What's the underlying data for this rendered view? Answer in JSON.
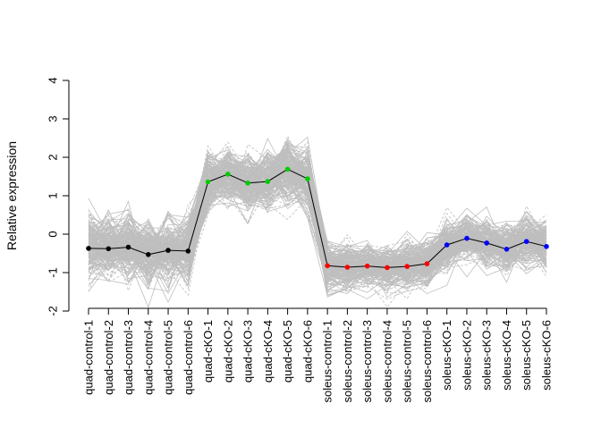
{
  "chart_data": {
    "type": "line",
    "title": "",
    "xlabel": "",
    "ylabel": "Relative expression",
    "ylim": [
      -2,
      4
    ],
    "yticks": [
      -2,
      -1,
      0,
      1,
      2,
      3,
      4
    ],
    "grid": false,
    "legend": "none",
    "categories": [
      "quad-control-1",
      "quad-control-2",
      "quad-control-3",
      "quad-control-4",
      "quad-control-5",
      "quad-control-6",
      "quad-cKO-1",
      "quad-cKO-2",
      "quad-cKO-3",
      "quad-cKO-4",
      "quad-cKO-5",
      "quad-cKO-6",
      "soleus-control-1",
      "soleus-control-2",
      "soleus-control-3",
      "soleus-control-4",
      "soleus-control-5",
      "soleus-control-6",
      "soleus-cKO-1",
      "soleus-cKO-2",
      "soleus-cKO-3",
      "soleus-cKO-4",
      "soleus-cKO-5",
      "soleus-cKO-6"
    ],
    "series": [
      {
        "values": [
          -0.37,
          -0.38,
          -0.34,
          -0.53,
          -0.42,
          -0.44,
          1.36,
          1.56,
          1.33,
          1.37,
          1.69,
          1.44,
          -0.82,
          -0.86,
          -0.83,
          -0.87,
          -0.84,
          -0.77,
          -0.28,
          -0.11,
          -0.23,
          -0.39,
          -0.19,
          -0.32
        ],
        "line_color": "#000000",
        "point_colors": [
          "#000000",
          "#000000",
          "#000000",
          "#000000",
          "#000000",
          "#000000",
          "#00cc00",
          "#00cc00",
          "#00cc00",
          "#00cc00",
          "#00cc00",
          "#00cc00",
          "#ff0000",
          "#ff0000",
          "#ff0000",
          "#ff0000",
          "#ff0000",
          "#ff0000",
          "#0000ff",
          "#0000ff",
          "#0000ff",
          "#0000ff",
          "#0000ff",
          "#0000ff"
        ]
      }
    ],
    "background_profiles": {
      "color": "#bebebe",
      "description_level": "many individual gene profiles drawn in grey behind the mean profile",
      "group_spread": [
        0.4,
        0.4,
        0.4,
        0.4,
        0.4,
        0.4,
        0.35,
        0.35,
        0.35,
        0.35,
        0.4,
        0.35,
        0.25,
        0.25,
        0.25,
        0.25,
        0.25,
        0.25,
        0.25,
        0.25,
        0.25,
        0.25,
        0.25,
        0.25
      ]
    }
  }
}
